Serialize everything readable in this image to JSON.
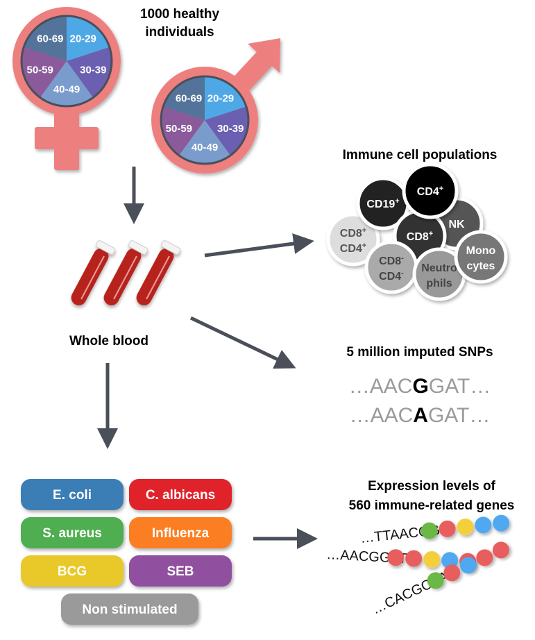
{
  "cohort": {
    "title_line1": "1000 healthy",
    "title_line2": "individuals",
    "age_groups": [
      "20-29",
      "30-39",
      "40-49",
      "50-59",
      "60-69"
    ],
    "age_colors": [
      "#4fa8e6",
      "#6a5fb0",
      "#7a9ccc",
      "#8a5a9a",
      "#53739a"
    ],
    "symbol_color": "#ee7f7f"
  },
  "blood": {
    "label": "Whole blood"
  },
  "immune": {
    "title": "Immune cell populations",
    "cells": [
      {
        "line1": "CD19",
        "sup1": "+",
        "line2": "",
        "sup2": ""
      },
      {
        "line1": "CD4",
        "sup1": "+",
        "line2": "",
        "sup2": ""
      },
      {
        "line1": "NK",
        "sup1": "",
        "line2": "",
        "sup2": ""
      },
      {
        "line1": "CD8",
        "sup1": "+",
        "line2": "",
        "sup2": ""
      },
      {
        "line1": "CD8",
        "sup1": "+",
        "line2": "CD4",
        "sup2": "+"
      },
      {
        "line1": "CD8",
        "sup1": "-",
        "line2": "CD4",
        "sup2": "-"
      },
      {
        "line1": "Neutro",
        "sup1": "",
        "line2": "phils",
        "sup2": ""
      },
      {
        "line1": "Mono",
        "sup1": "",
        "line2": "cytes",
        "sup2": ""
      }
    ]
  },
  "snps": {
    "title": "5 million imputed SNPs",
    "seq1": {
      "pre": "…AAC",
      "variant": "G",
      "post": "GAT…"
    },
    "seq2": {
      "pre": "…AAC",
      "variant": "A",
      "post": "GAT…"
    }
  },
  "stimuli": [
    {
      "label": "E. coli",
      "color": "#3a7db5"
    },
    {
      "label": "C. albicans",
      "color": "#e0232a"
    },
    {
      "label": "S. aureus",
      "color": "#4fae4f"
    },
    {
      "label": "Influenza",
      "color": "#fb7f22"
    },
    {
      "label": "BCG",
      "color": "#e9c92b"
    },
    {
      "label": "SEB",
      "color": "#914f9f"
    },
    {
      "label": "Non stimulated",
      "color": "#9a9a9a"
    }
  ],
  "expression": {
    "title_line1": "Expression levels of",
    "title_line2": "560 immune-related genes",
    "strands": [
      {
        "seq": "…TTAACGG",
        "beads": [
          "#6ab845",
          "#e85d5d",
          "#f3cf3a",
          "#4fa8f0",
          "#4fa8f0"
        ]
      },
      {
        "seq": "…AACGGAT",
        "beads": [
          "#e85d5d",
          "#e85d5d",
          "#f3cf3a",
          "#4fa8f0",
          "#e85d5d"
        ]
      },
      {
        "seq": "…CACGCAA",
        "beads": [
          "#6ab845",
          "#e85d5d",
          "#4fa8f0",
          "#e85d5d",
          "#e85d5d"
        ]
      }
    ]
  }
}
